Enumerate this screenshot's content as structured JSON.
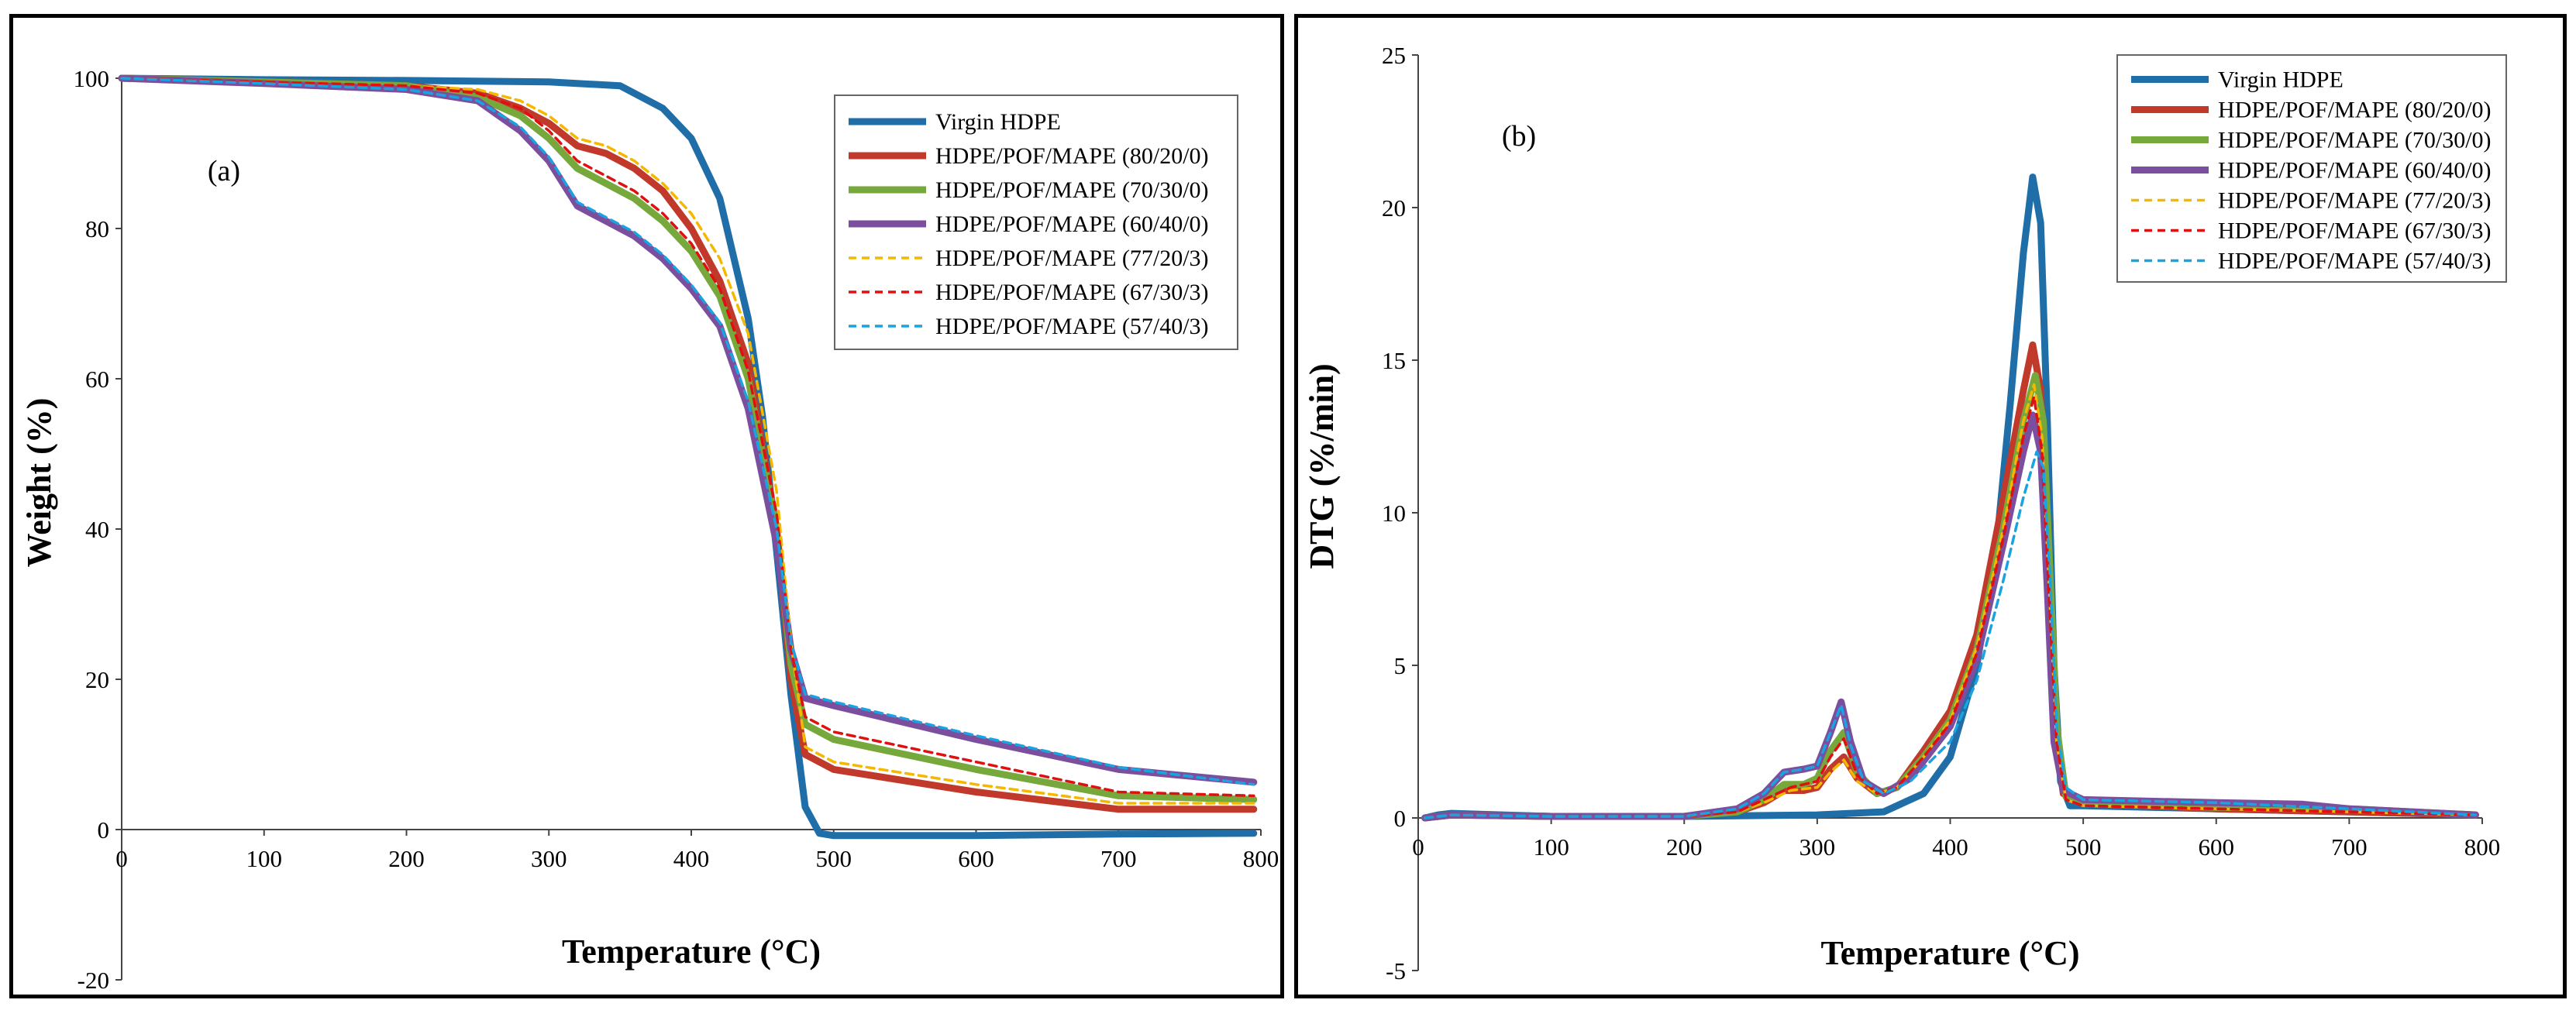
{
  "chart_data": [
    {
      "id": "a",
      "type": "line",
      "panel_label": "(a)",
      "xlabel": "Temperature (°C)",
      "ylabel": "Weight (%)",
      "xlim": [
        0,
        800
      ],
      "ylim": [
        -20,
        100
      ],
      "xticks": [
        0,
        100,
        200,
        300,
        400,
        500,
        600,
        700,
        800
      ],
      "yticks": [
        -20,
        0,
        20,
        40,
        60,
        80,
        100
      ],
      "legend_position": "top-right",
      "series": [
        {
          "name": "Virgin  HDPE",
          "color": "#1f6ea8",
          "style": "solid",
          "width": "thick",
          "x": [
            0,
            100,
            200,
            300,
            350,
            380,
            400,
            420,
            440,
            450,
            460,
            470,
            480,
            490,
            500,
            600,
            700,
            795
          ],
          "y": [
            100,
            99.8,
            99.7,
            99.5,
            99,
            96,
            92,
            84,
            68,
            55,
            37,
            18,
            3,
            -0.5,
            -0.8,
            -0.8,
            -0.6,
            -0.5
          ]
        },
        {
          "name": "HDPE/POF/MAPE (80/20/0)",
          "color": "#c0392b",
          "style": "solid",
          "width": "thick",
          "x": [
            0,
            100,
            200,
            250,
            280,
            300,
            320,
            340,
            360,
            380,
            400,
            420,
            440,
            460,
            470,
            480,
            500,
            600,
            700,
            795
          ],
          "y": [
            100,
            99.5,
            99,
            98,
            96,
            94,
            91,
            90,
            88,
            85,
            80,
            73,
            62,
            40,
            20,
            10,
            8,
            5,
            2.7,
            2.7
          ]
        },
        {
          "name": "HDPE/POF/MAPE (70/30/0)",
          "color": "#77a83c",
          "style": "solid",
          "width": "thick",
          "x": [
            0,
            100,
            200,
            250,
            280,
            300,
            320,
            340,
            360,
            380,
            400,
            420,
            440,
            460,
            470,
            480,
            500,
            600,
            700,
            795
          ],
          "y": [
            100,
            99.5,
            99,
            97.5,
            95,
            92,
            88,
            86,
            84,
            81,
            77,
            71,
            60,
            40,
            22,
            14,
            12,
            8,
            4.5,
            4
          ]
        },
        {
          "name": "HDPE/POF/MAPE (60/40/0)",
          "color": "#7b4f9d",
          "style": "solid",
          "width": "thick",
          "x": [
            0,
            100,
            200,
            250,
            280,
            300,
            310,
            320,
            330,
            340,
            360,
            380,
            400,
            420,
            440,
            460,
            470,
            480,
            500,
            600,
            700,
            795
          ],
          "y": [
            100,
            99.3,
            98.5,
            97,
            93,
            89,
            86,
            83,
            82,
            81,
            79,
            76,
            72,
            67,
            56,
            38,
            24,
            17.5,
            16.5,
            12,
            8,
            6.3
          ]
        },
        {
          "name": "HDPE/POF/MAPE (77/20/3)",
          "color": "#f5b800",
          "style": "dashed",
          "width": "thin",
          "x": [
            0,
            100,
            200,
            250,
            280,
            300,
            320,
            340,
            360,
            380,
            400,
            420,
            440,
            460,
            470,
            480,
            500,
            600,
            700,
            795
          ],
          "y": [
            100,
            99.5,
            99,
            98.5,
            97,
            95,
            92,
            91,
            89,
            86,
            82,
            76,
            66,
            45,
            25,
            11,
            9,
            6,
            3.5,
            3.5
          ]
        },
        {
          "name": "HDPE/POF/MAPE (67/30/3)",
          "color": "#e01010",
          "style": "dashed",
          "width": "thin",
          "x": [
            0,
            100,
            200,
            250,
            280,
            300,
            320,
            340,
            360,
            380,
            400,
            420,
            440,
            460,
            470,
            480,
            500,
            600,
            700,
            795
          ],
          "y": [
            100,
            99.5,
            99,
            98,
            96,
            93,
            89,
            87,
            85,
            82,
            78,
            72,
            61,
            42,
            24,
            15,
            13,
            9,
            5,
            4.5
          ]
        },
        {
          "name": "HDPE/POF/MAPE (57/40/3)",
          "color": "#1aa3e0",
          "style": "dashed",
          "width": "thin",
          "x": [
            0,
            100,
            200,
            250,
            280,
            300,
            310,
            320,
            330,
            340,
            360,
            380,
            400,
            420,
            440,
            460,
            470,
            480,
            500,
            600,
            700,
            795
          ],
          "y": [
            100,
            99.3,
            98.5,
            97,
            93.5,
            89.5,
            86.5,
            83.5,
            82.5,
            81.5,
            79.5,
            76.5,
            72.5,
            67.5,
            57,
            40,
            25,
            18,
            17,
            12.5,
            8.3,
            6
          ]
        }
      ]
    },
    {
      "id": "b",
      "type": "line",
      "panel_label": "(b)",
      "xlabel": "Temperature (°C)",
      "ylabel": "DTG (%/min)",
      "xlim": [
        0,
        800
      ],
      "ylim": [
        -5,
        25
      ],
      "xticks": [
        0,
        100,
        200,
        300,
        400,
        500,
        600,
        700,
        800
      ],
      "yticks": [
        -5,
        0,
        5,
        10,
        15,
        20,
        25
      ],
      "legend_position": "top-right",
      "series": [
        {
          "name": "Virgin  HDPE",
          "color": "#1f6ea8",
          "style": "solid",
          "width": "thick",
          "x": [
            5,
            15,
            25,
            100,
            200,
            300,
            350,
            380,
            400,
            420,
            435,
            445,
            455,
            462,
            468,
            473,
            478,
            483,
            490,
            500,
            600,
            700,
            795
          ],
          "y": [
            0,
            0.1,
            0.15,
            0.05,
            0.05,
            0.1,
            0.2,
            0.8,
            2,
            5,
            9,
            13.5,
            18.5,
            21,
            19.5,
            13,
            5,
            1.2,
            0.4,
            0.4,
            0.3,
            0.2,
            0.1
          ]
        },
        {
          "name": "HDPE/POF/MAPE (80/20/0)",
          "color": "#c0392b",
          "style": "solid",
          "width": "thick",
          "x": [
            5,
            25,
            100,
            200,
            240,
            260,
            275,
            290,
            300,
            310,
            320,
            330,
            345,
            360,
            380,
            400,
            420,
            440,
            455,
            462,
            468,
            473,
            478,
            485,
            500,
            600,
            700,
            795
          ],
          "y": [
            0,
            0.1,
            0.05,
            0.05,
            0.2,
            0.5,
            0.9,
            0.9,
            1.0,
            1.6,
            2.0,
            1.3,
            0.8,
            1.0,
            2.2,
            3.5,
            6,
            10.5,
            14,
            15.5,
            14,
            9,
            3,
            0.8,
            0.5,
            0.3,
            0.2,
            0.1
          ]
        },
        {
          "name": "HDPE/POF/MAPE (70/30/0)",
          "color": "#77a83c",
          "style": "solid",
          "width": "thick",
          "x": [
            5,
            25,
            100,
            200,
            240,
            260,
            275,
            290,
            300,
            310,
            320,
            330,
            345,
            360,
            380,
            400,
            420,
            440,
            455,
            464,
            470,
            475,
            480,
            487,
            500,
            600,
            700,
            795
          ],
          "y": [
            0,
            0.1,
            0.05,
            0.05,
            0.2,
            0.6,
            1.1,
            1.1,
            1.3,
            2.2,
            2.8,
            1.5,
            0.8,
            1.0,
            2.0,
            3.2,
            5.5,
            9.5,
            13,
            14.5,
            13,
            8,
            3,
            0.7,
            0.5,
            0.35,
            0.3,
            0.1
          ]
        },
        {
          "name": "HDPE/POF/MAPE (60/40/0)",
          "color": "#7b4f9d",
          "style": "solid",
          "width": "thick",
          "x": [
            5,
            25,
            100,
            200,
            240,
            260,
            275,
            290,
            300,
            310,
            318,
            325,
            335,
            350,
            370,
            400,
            420,
            440,
            455,
            462,
            468,
            473,
            478,
            485,
            500,
            600,
            665,
            700,
            795
          ],
          "y": [
            0,
            0.1,
            0.05,
            0.05,
            0.3,
            0.8,
            1.5,
            1.6,
            1.7,
            2.8,
            3.8,
            2.5,
            1.2,
            0.8,
            1.3,
            3.0,
            5.2,
            9,
            12,
            13.2,
            12,
            7.5,
            2.5,
            0.9,
            0.6,
            0.5,
            0.45,
            0.3,
            0.1
          ]
        },
        {
          "name": "HDPE/POF/MAPE (77/20/3)",
          "color": "#f5b800",
          "style": "dashed",
          "width": "thin",
          "x": [
            5,
            25,
            100,
            200,
            240,
            260,
            280,
            300,
            310,
            320,
            330,
            345,
            360,
            380,
            400,
            420,
            440,
            455,
            463,
            469,
            474,
            480,
            487,
            500,
            600,
            700,
            795
          ],
          "y": [
            0,
            0.1,
            0.05,
            0.05,
            0.2,
            0.5,
            0.9,
            1.0,
            1.5,
            1.9,
            1.2,
            0.8,
            1.0,
            2.0,
            3.2,
            5.6,
            9.5,
            13,
            14.2,
            12.5,
            8,
            2.5,
            0.6,
            0.4,
            0.3,
            0.2,
            0.1
          ]
        },
        {
          "name": "HDPE/POF/MAPE (67/30/3)",
          "color": "#e01010",
          "style": "dashed",
          "width": "thin",
          "x": [
            5,
            25,
            100,
            200,
            240,
            260,
            280,
            300,
            310,
            320,
            330,
            345,
            360,
            380,
            400,
            420,
            440,
            455,
            463,
            469,
            474,
            480,
            487,
            500,
            600,
            700,
            795
          ],
          "y": [
            0,
            0.1,
            0.05,
            0.05,
            0.2,
            0.6,
            1.0,
            1.2,
            2.0,
            2.6,
            1.4,
            0.8,
            1.0,
            2.0,
            3.1,
            5.4,
            9.2,
            12.5,
            13.8,
            12,
            7.5,
            2.5,
            0.6,
            0.4,
            0.3,
            0.2,
            0.1
          ]
        },
        {
          "name": "HDPE/POF/MAPE (57/40/3)",
          "color": "#1aa3e0",
          "style": "dashed",
          "width": "thin",
          "x": [
            5,
            25,
            100,
            200,
            240,
            260,
            275,
            290,
            300,
            310,
            318,
            325,
            335,
            350,
            370,
            400,
            420,
            440,
            455,
            465,
            470,
            475,
            480,
            487,
            500,
            600,
            700,
            795
          ],
          "y": [
            0,
            0.1,
            0.05,
            0.05,
            0.3,
            0.8,
            1.5,
            1.6,
            1.7,
            2.8,
            3.7,
            2.4,
            1.2,
            0.8,
            1.2,
            2.5,
            4.5,
            7.8,
            10.5,
            12,
            11.5,
            8,
            3,
            1.0,
            0.6,
            0.5,
            0.3,
            0.1
          ]
        }
      ]
    }
  ]
}
